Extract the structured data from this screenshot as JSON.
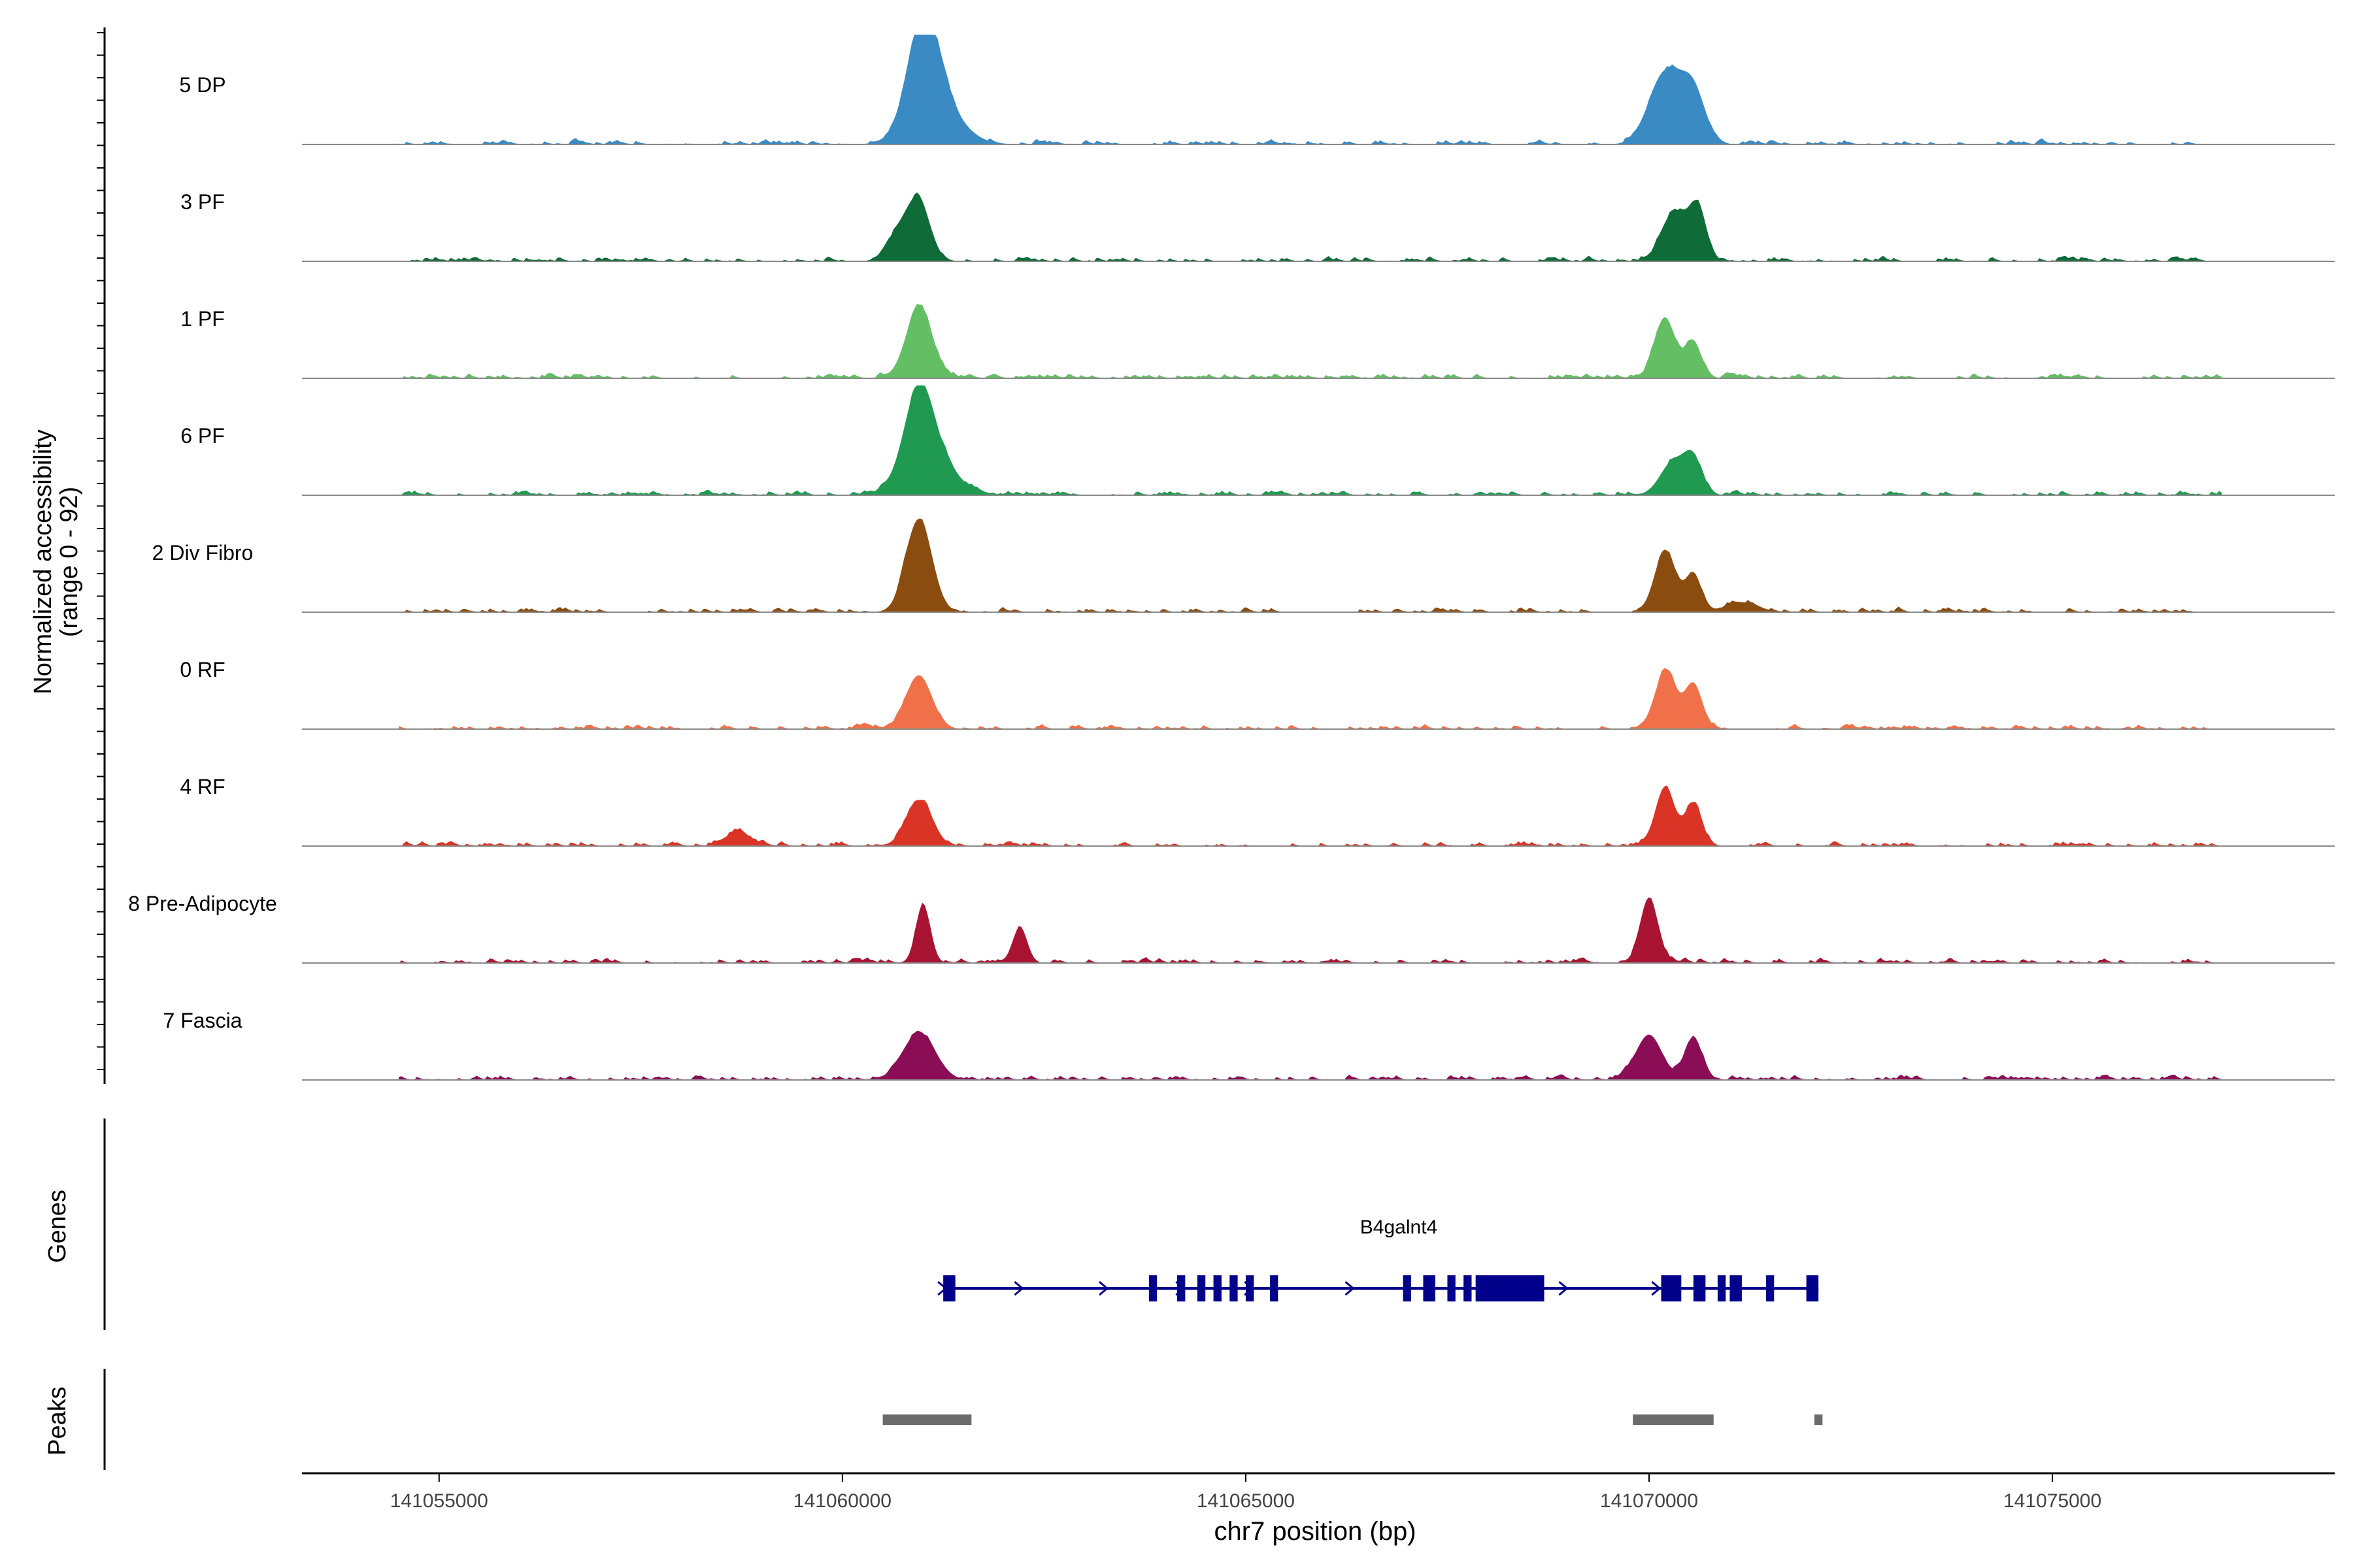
{
  "chart_data": {
    "type": "area",
    "title": "",
    "ylabel_line1": "Normalized accessibility",
    "ylabel_line2": "(range 0 - 92)",
    "xlabel": "chr7 position (bp)",
    "y_range": [
      0,
      92
    ],
    "x_range": [
      141053300,
      141078500
    ],
    "signal_x_range": [
      141054500,
      141077100
    ],
    "x_ticks": [
      141055000,
      141060000,
      141065000,
      141070000,
      141075000
    ],
    "x_tick_labels": [
      "141055000",
      "141060000",
      "141065000",
      "141070000",
      "141075000"
    ],
    "tracks": [
      {
        "name": "5 DP",
        "color": "#3a8ac4",
        "peaks": [
          [
            141061000,
            85,
            180
          ],
          [
            141061150,
            35,
            300
          ],
          [
            141070200,
            60,
            200
          ],
          [
            141070550,
            42,
            150
          ]
        ]
      },
      {
        "name": "3 PF",
        "color": "#0f6b37",
        "peaks": [
          [
            141060950,
            48,
            140
          ],
          [
            141060700,
            22,
            150
          ],
          [
            141070300,
            40,
            150
          ],
          [
            141070600,
            45,
            110
          ]
        ]
      },
      {
        "name": "1 PF",
        "color": "#64be64",
        "peaks": [
          [
            141060950,
            60,
            160
          ],
          [
            141070200,
            50,
            130
          ],
          [
            141070550,
            30,
            100
          ]
        ]
      },
      {
        "name": "6 PF",
        "color": "#1f9a50",
        "peaks": [
          [
            141060950,
            70,
            180
          ],
          [
            141061100,
            28,
            300
          ],
          [
            141070300,
            28,
            160
          ],
          [
            141070550,
            28,
            110
          ]
        ]
      },
      {
        "name": "2 Div Fibro",
        "color": "#8b4c10",
        "peaks": [
          [
            141060950,
            78,
            160
          ],
          [
            141071150,
            8,
            200
          ],
          [
            141070200,
            52,
            130
          ],
          [
            141070550,
            32,
            100
          ]
        ]
      },
      {
        "name": "0 RF",
        "color": "#f0704a",
        "peaks": [
          [
            141060950,
            45,
            160
          ],
          [
            141070200,
            48,
            130
          ],
          [
            141070550,
            38,
            110
          ]
        ]
      },
      {
        "name": "4 RF",
        "color": "#d93425",
        "peaks": [
          [
            141060950,
            38,
            160
          ],
          [
            141058700,
            12,
            150
          ],
          [
            141070200,
            50,
            120
          ],
          [
            141070550,
            35,
            100
          ]
        ]
      },
      {
        "name": "8 Pre-Adipocyte",
        "color": "#a81432",
        "peaks": [
          [
            141061000,
            48,
            90
          ],
          [
            141062200,
            30,
            90
          ],
          [
            141070000,
            55,
            110
          ]
        ]
      },
      {
        "name": "7 Fascia",
        "color": "#8b0d55",
        "peaks": [
          [
            141060950,
            40,
            200
          ],
          [
            141070000,
            38,
            160
          ],
          [
            141070550,
            35,
            110
          ]
        ]
      }
    ],
    "genes_label": "Genes",
    "peaks_label": "Peaks",
    "gene": {
      "name": "B4galnt4",
      "strand": "+",
      "start": 141061250,
      "end": 141072100,
      "exons": [
        [
          141061250,
          141061400
        ],
        [
          141063800,
          141063900
        ],
        [
          141064150,
          141064250
        ],
        [
          141064400,
          141064500
        ],
        [
          141064600,
          141064700
        ],
        [
          141064800,
          141064900
        ],
        [
          141065000,
          141065100
        ],
        [
          141065300,
          141065400
        ],
        [
          141066950,
          141067050
        ],
        [
          141067200,
          141067350
        ],
        [
          141067500,
          141067600
        ],
        [
          141067700,
          141067800
        ],
        [
          141067850,
          141068700
        ],
        [
          141070150,
          141070400
        ],
        [
          141070550,
          141070700
        ],
        [
          141070850,
          141070950
        ],
        [
          141071000,
          141071150
        ],
        [
          141071450,
          141071550
        ],
        [
          141071950,
          141072100
        ]
      ]
    },
    "peak_regions": [
      [
        141060500,
        141061600
      ],
      [
        141069800,
        141070800
      ],
      [
        141072050,
        141072150
      ]
    ]
  }
}
